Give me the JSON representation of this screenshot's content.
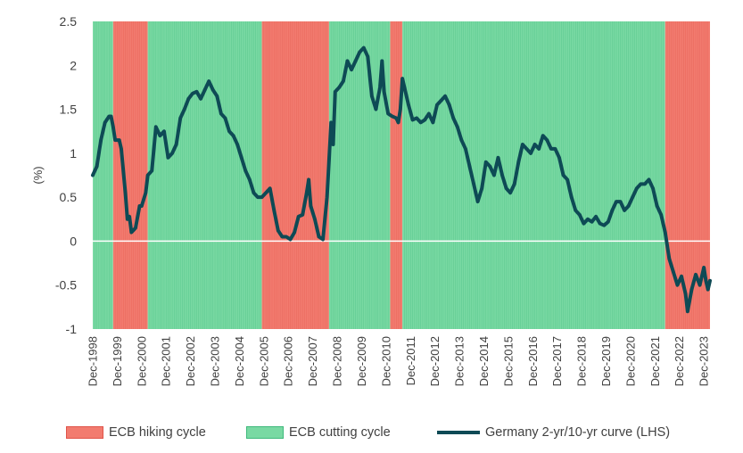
{
  "colors": {
    "hiking_fill": "#f27b6f",
    "hiking_border": "#e0544a",
    "cutting_fill": "#79d9a3",
    "cutting_border": "#3fb97c",
    "line": "#0e4a55",
    "zero_line": "#ffffff"
  },
  "chart_data": {
    "type": "line",
    "title": "",
    "ylabel": "(%)",
    "ylim": [
      -1,
      2.5
    ],
    "yticks": [
      "2.5",
      "2",
      "1.5",
      "1",
      "0.5",
      "0",
      "-0.5",
      "-1"
    ],
    "xlim": [
      "1998-12",
      "2024-03"
    ],
    "x_tick_labels": [
      "Dec-1998",
      "Dec-1999",
      "Dec-2000",
      "Dec-2001",
      "Dec-2002",
      "Dec-2003",
      "Dec-2004",
      "Dec-2005",
      "Dec-2006",
      "Dec-2007",
      "Dec-2008",
      "Dec-2009",
      "Dec-2010",
      "Dec-2011",
      "Dec-2012",
      "Dec-2013",
      "Dec-2014",
      "Dec-2015",
      "Dec-2016",
      "Dec-2017",
      "Dec-2018",
      "Dec-2019",
      "Dec-2020",
      "Dec-2021",
      "Dec-2022",
      "Dec-2023"
    ],
    "regimes": [
      {
        "kind": "cutting",
        "start": "1998-12",
        "end": "1999-10"
      },
      {
        "kind": "hiking",
        "start": "1999-10",
        "end": "2001-03"
      },
      {
        "kind": "cutting",
        "start": "2001-03",
        "end": "2005-11"
      },
      {
        "kind": "hiking",
        "start": "2005-11",
        "end": "2008-08"
      },
      {
        "kind": "cutting",
        "start": "2008-08",
        "end": "2011-02"
      },
      {
        "kind": "hiking",
        "start": "2011-02",
        "end": "2011-08"
      },
      {
        "kind": "cutting",
        "start": "2011-08",
        "end": "2022-05"
      },
      {
        "kind": "hiking",
        "start": "2022-05",
        "end": "2024-03"
      }
    ],
    "series": [
      {
        "name": "Germany 2-yr/10-yr curve (LHS)",
        "points": [
          [
            "1998-12",
            0.75
          ],
          [
            "1999-02",
            0.85
          ],
          [
            "1999-04",
            1.15
          ],
          [
            "1999-06",
            1.35
          ],
          [
            "1999-08",
            1.42
          ],
          [
            "1999-09",
            1.42
          ],
          [
            "1999-10",
            1.3
          ],
          [
            "1999-11",
            1.15
          ],
          [
            "2000-01",
            1.15
          ],
          [
            "2000-02",
            1.05
          ],
          [
            "2000-04",
            0.55
          ],
          [
            "2000-05",
            0.25
          ],
          [
            "2000-06",
            0.28
          ],
          [
            "2000-07",
            0.1
          ],
          [
            "2000-09",
            0.15
          ],
          [
            "2000-11",
            0.4
          ],
          [
            "2000-12",
            0.4
          ],
          [
            "2001-02",
            0.55
          ],
          [
            "2001-03",
            0.75
          ],
          [
            "2001-05",
            0.8
          ],
          [
            "2001-07",
            1.3
          ],
          [
            "2001-09",
            1.2
          ],
          [
            "2001-11",
            1.25
          ],
          [
            "2002-01",
            0.95
          ],
          [
            "2002-03",
            1.0
          ],
          [
            "2002-05",
            1.1
          ],
          [
            "2002-07",
            1.4
          ],
          [
            "2002-09",
            1.5
          ],
          [
            "2002-11",
            1.62
          ],
          [
            "2003-01",
            1.68
          ],
          [
            "2003-03",
            1.7
          ],
          [
            "2003-05",
            1.62
          ],
          [
            "2003-07",
            1.72
          ],
          [
            "2003-09",
            1.82
          ],
          [
            "2003-11",
            1.72
          ],
          [
            "2004-01",
            1.65
          ],
          [
            "2004-03",
            1.45
          ],
          [
            "2004-05",
            1.4
          ],
          [
            "2004-07",
            1.25
          ],
          [
            "2004-09",
            1.2
          ],
          [
            "2004-11",
            1.1
          ],
          [
            "2005-01",
            0.95
          ],
          [
            "2005-03",
            0.8
          ],
          [
            "2005-05",
            0.7
          ],
          [
            "2005-07",
            0.55
          ],
          [
            "2005-09",
            0.5
          ],
          [
            "2005-11",
            0.5
          ],
          [
            "2006-01",
            0.55
          ],
          [
            "2006-03",
            0.6
          ],
          [
            "2006-05",
            0.35
          ],
          [
            "2006-07",
            0.12
          ],
          [
            "2006-09",
            0.05
          ],
          [
            "2006-11",
            0.05
          ],
          [
            "2007-01",
            0.02
          ],
          [
            "2007-03",
            0.1
          ],
          [
            "2007-05",
            0.28
          ],
          [
            "2007-07",
            0.3
          ],
          [
            "2007-09",
            0.55
          ],
          [
            "2007-10",
            0.7
          ],
          [
            "2007-11",
            0.4
          ],
          [
            "2008-01",
            0.25
          ],
          [
            "2008-03",
            0.05
          ],
          [
            "2008-05",
            0.02
          ],
          [
            "2008-07",
            0.5
          ],
          [
            "2008-09",
            1.35
          ],
          [
            "2008-10",
            1.1
          ],
          [
            "2008-11",
            1.7
          ],
          [
            "2009-01",
            1.75
          ],
          [
            "2009-03",
            1.82
          ],
          [
            "2009-05",
            2.05
          ],
          [
            "2009-07",
            1.95
          ],
          [
            "2009-09",
            2.05
          ],
          [
            "2009-11",
            2.15
          ],
          [
            "2010-01",
            2.2
          ],
          [
            "2010-03",
            2.1
          ],
          [
            "2010-05",
            1.65
          ],
          [
            "2010-07",
            1.5
          ],
          [
            "2010-09",
            1.75
          ],
          [
            "2010-10",
            2.05
          ],
          [
            "2010-11",
            1.7
          ],
          [
            "2011-01",
            1.45
          ],
          [
            "2011-03",
            1.42
          ],
          [
            "2011-05",
            1.4
          ],
          [
            "2011-06",
            1.35
          ],
          [
            "2011-07",
            1.5
          ],
          [
            "2011-08",
            1.85
          ],
          [
            "2011-09",
            1.75
          ],
          [
            "2011-11",
            1.55
          ],
          [
            "2012-01",
            1.38
          ],
          [
            "2012-03",
            1.4
          ],
          [
            "2012-05",
            1.35
          ],
          [
            "2012-07",
            1.38
          ],
          [
            "2012-09",
            1.45
          ],
          [
            "2012-11",
            1.35
          ],
          [
            "2013-01",
            1.55
          ],
          [
            "2013-03",
            1.6
          ],
          [
            "2013-05",
            1.65
          ],
          [
            "2013-07",
            1.55
          ],
          [
            "2013-09",
            1.4
          ],
          [
            "2013-11",
            1.3
          ],
          [
            "2014-01",
            1.15
          ],
          [
            "2014-03",
            1.05
          ],
          [
            "2014-05",
            0.85
          ],
          [
            "2014-07",
            0.65
          ],
          [
            "2014-09",
            0.45
          ],
          [
            "2014-11",
            0.6
          ],
          [
            "2015-01",
            0.9
          ],
          [
            "2015-03",
            0.85
          ],
          [
            "2015-05",
            0.75
          ],
          [
            "2015-07",
            0.95
          ],
          [
            "2015-09",
            0.75
          ],
          [
            "2015-11",
            0.6
          ],
          [
            "2016-01",
            0.55
          ],
          [
            "2016-03",
            0.65
          ],
          [
            "2016-05",
            0.9
          ],
          [
            "2016-07",
            1.1
          ],
          [
            "2016-09",
            1.05
          ],
          [
            "2016-11",
            1.0
          ],
          [
            "2017-01",
            1.1
          ],
          [
            "2017-03",
            1.05
          ],
          [
            "2017-05",
            1.2
          ],
          [
            "2017-07",
            1.15
          ],
          [
            "2017-09",
            1.05
          ],
          [
            "2017-11",
            1.05
          ],
          [
            "2018-01",
            0.95
          ],
          [
            "2018-03",
            0.75
          ],
          [
            "2018-05",
            0.7
          ],
          [
            "2018-07",
            0.5
          ],
          [
            "2018-09",
            0.35
          ],
          [
            "2018-11",
            0.3
          ],
          [
            "2019-01",
            0.2
          ],
          [
            "2019-03",
            0.25
          ],
          [
            "2019-05",
            0.22
          ],
          [
            "2019-07",
            0.28
          ],
          [
            "2019-09",
            0.2
          ],
          [
            "2019-11",
            0.18
          ],
          [
            "2020-01",
            0.22
          ],
          [
            "2020-03",
            0.35
          ],
          [
            "2020-05",
            0.45
          ],
          [
            "2020-07",
            0.45
          ],
          [
            "2020-09",
            0.35
          ],
          [
            "2020-11",
            0.4
          ],
          [
            "2021-01",
            0.5
          ],
          [
            "2021-03",
            0.6
          ],
          [
            "2021-05",
            0.65
          ],
          [
            "2021-07",
            0.65
          ],
          [
            "2021-09",
            0.7
          ],
          [
            "2021-11",
            0.6
          ],
          [
            "2022-01",
            0.4
          ],
          [
            "2022-03",
            0.3
          ],
          [
            "2022-05",
            0.1
          ],
          [
            "2022-07",
            -0.2
          ],
          [
            "2022-09",
            -0.35
          ],
          [
            "2022-11",
            -0.5
          ],
          [
            "2023-01",
            -0.4
          ],
          [
            "2023-03",
            -0.6
          ],
          [
            "2023-04",
            -0.8
          ],
          [
            "2023-06",
            -0.55
          ],
          [
            "2023-08",
            -0.38
          ],
          [
            "2023-10",
            -0.5
          ],
          [
            "2023-12",
            -0.3
          ],
          [
            "2024-01",
            -0.45
          ],
          [
            "2024-02",
            -0.55
          ],
          [
            "2024-03",
            -0.45
          ]
        ]
      }
    ],
    "legend": {
      "position": "bottom",
      "entries": [
        "ECB hiking cycle",
        "ECB cutting cycle",
        "Germany 2-yr/10-yr curve (LHS)"
      ]
    }
  }
}
